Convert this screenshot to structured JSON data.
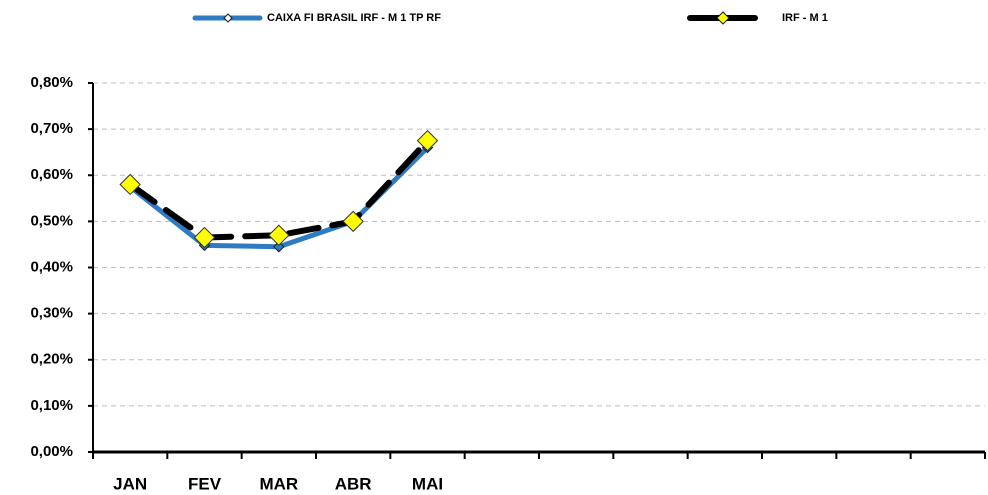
{
  "chart_data": {
    "type": "line",
    "categories": [
      "JAN",
      "FEV",
      "MAR",
      "ABR",
      "MAI",
      null,
      null,
      null,
      null,
      null,
      null,
      null
    ],
    "series": [
      {
        "name": "CAIXA FI BRASIL IRF - M 1 TP RF",
        "color": "#2e7bc4",
        "values": [
          0.575,
          0.448,
          0.445,
          0.5,
          0.66,
          null,
          null,
          null,
          null,
          null,
          null,
          null
        ]
      },
      {
        "name": "IRF - M 1",
        "color": "#000000",
        "marker_color": "#ffff00",
        "values": [
          0.58,
          0.465,
          0.47,
          0.5,
          0.675,
          null,
          null,
          null,
          null,
          null,
          null,
          null
        ]
      }
    ],
    "ylim": [
      0,
      0.8
    ],
    "yticks": [
      {
        "value": 0,
        "label": "0,00%"
      },
      {
        "value": 0.1,
        "label": "0,10%"
      },
      {
        "value": 0.2,
        "label": "0,20%"
      },
      {
        "value": 0.3,
        "label": "0,30%"
      },
      {
        "value": 0.4,
        "label": "0,40%"
      },
      {
        "value": 0.5,
        "label": "0,50%"
      },
      {
        "value": 0.6,
        "label": "0,60%"
      },
      {
        "value": 0.7,
        "label": "0,70%"
      },
      {
        "value": 0.8,
        "label": "0,80%"
      }
    ],
    "grid": true,
    "legend": "top"
  }
}
